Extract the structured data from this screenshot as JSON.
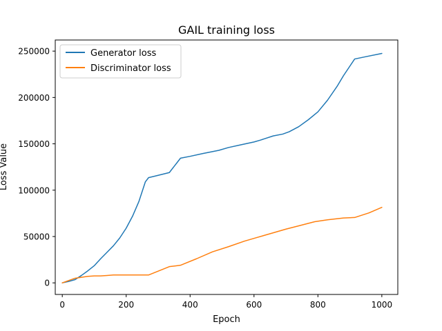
{
  "chart_data": {
    "type": "line",
    "title": "GAIL training loss",
    "xlabel": "Epoch",
    "ylabel": "Loss Value",
    "xlim": [
      -22,
      1050
    ],
    "ylim": [
      -12500,
      262000
    ],
    "xticks": [
      0,
      200,
      400,
      600,
      800,
      1000
    ],
    "yticks": [
      0,
      50000,
      100000,
      150000,
      200000,
      250000
    ],
    "xtick_labels": [
      "0",
      "200",
      "400",
      "600",
      "800",
      "1000"
    ],
    "ytick_labels": [
      "0",
      "50000",
      "100000",
      "150000",
      "200000",
      "250000"
    ],
    "grid": false,
    "legend": "top-left",
    "series": [
      {
        "name": "Generator loss",
        "color": "#1f77b4",
        "x": [
          0,
          20,
          40,
          60,
          80,
          100,
          120,
          140,
          160,
          180,
          200,
          220,
          240,
          260,
          270,
          300,
          335,
          370,
          400,
          440,
          490,
          520,
          560,
          600,
          620,
          660,
          690,
          710,
          740,
          770,
          800,
          830,
          860,
          880,
          915,
          950,
          1000
        ],
        "y": [
          0,
          1500,
          3500,
          8000,
          13000,
          18500,
          26000,
          33000,
          40000,
          48500,
          59000,
          72000,
          88000,
          109000,
          113500,
          116000,
          119000,
          134500,
          136500,
          139500,
          143000,
          146000,
          149000,
          152000,
          154000,
          158500,
          160500,
          163000,
          168500,
          176000,
          184500,
          197000,
          212000,
          223500,
          241500,
          244000,
          247500
        ]
      },
      {
        "name": "Discriminator loss",
        "color": "#ff7f0e",
        "x": [
          0,
          20,
          40,
          60,
          80,
          100,
          120,
          140,
          160,
          200,
          240,
          270,
          335,
          370,
          420,
          470,
          520,
          570,
          610,
          660,
          700,
          740,
          790,
          830,
          880,
          915,
          960,
          1000
        ],
        "y": [
          0,
          2500,
          5000,
          6000,
          7000,
          7500,
          7500,
          8000,
          8500,
          8500,
          8500,
          8500,
          17500,
          19000,
          26000,
          33500,
          39000,
          45000,
          49000,
          54000,
          58000,
          61500,
          66000,
          68000,
          70000,
          70500,
          75500,
          81500
        ]
      }
    ]
  }
}
